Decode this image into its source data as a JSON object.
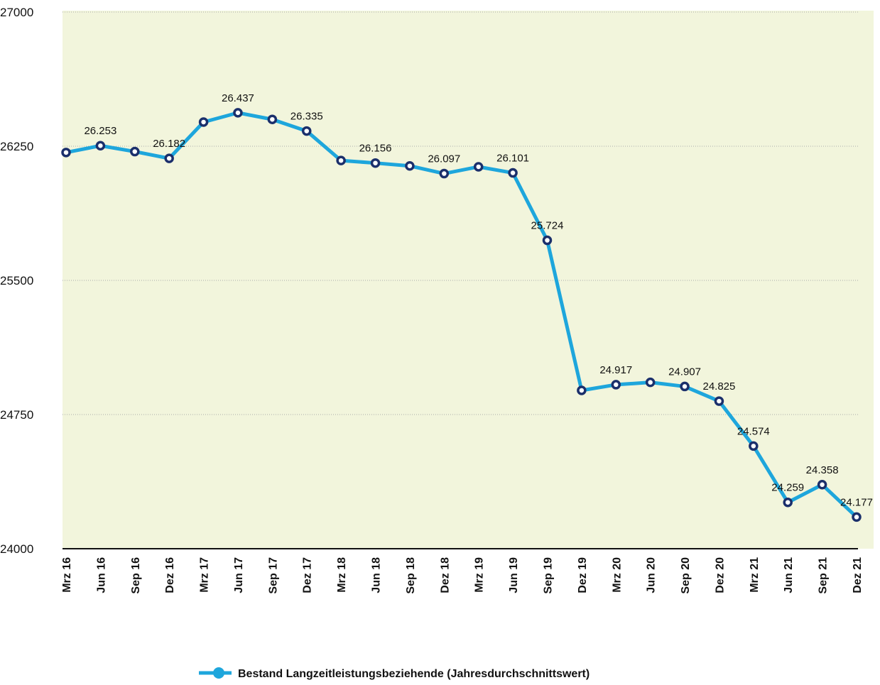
{
  "chart_data": {
    "type": "line",
    "categories": [
      "Mrz 16",
      "Jun 16",
      "Sep 16",
      "Dez 16",
      "Mrz 17",
      "Jun 17",
      "Sep 17",
      "Dez 17",
      "Mrz 18",
      "Jun 18",
      "Sep 18",
      "Dez 18",
      "Mrz 19",
      "Jun 19",
      "Sep 19",
      "Dez 19",
      "Mrz 20",
      "Jun 20",
      "Sep 20",
      "Dez 20",
      "Mrz 21",
      "Jun 21",
      "Sep 21",
      "Dez 21"
    ],
    "series": [
      {
        "name": "Bestand Langzeitleistungsbeziehende (Jahresdurchschnittswert)",
        "color": "#1ea6dc",
        "marker_color": "#1b2f6b",
        "values": [
          26215,
          26253,
          26220,
          26182,
          26385,
          26437,
          26400,
          26335,
          26170,
          26156,
          26140,
          26097,
          26135,
          26101,
          25724,
          24885,
          24917,
          24930,
          24907,
          24825,
          24574,
          24259,
          24358,
          24177
        ],
        "value_labels": [
          null,
          "26.253",
          null,
          "26.182",
          null,
          "26.437",
          null,
          "26.335",
          null,
          "26.156",
          null,
          "26.097",
          null,
          "26.101",
          "25.724",
          null,
          "24.917",
          null,
          "24.907",
          "24.825",
          "24.574",
          "24.259",
          "24.358",
          "24.177"
        ]
      }
    ],
    "ylim": [
      24000,
      27000
    ],
    "yticks": [
      24000,
      24750,
      25500,
      26250,
      27000
    ],
    "grid": true,
    "legend": "bottom",
    "background": "#f2f5dc"
  }
}
